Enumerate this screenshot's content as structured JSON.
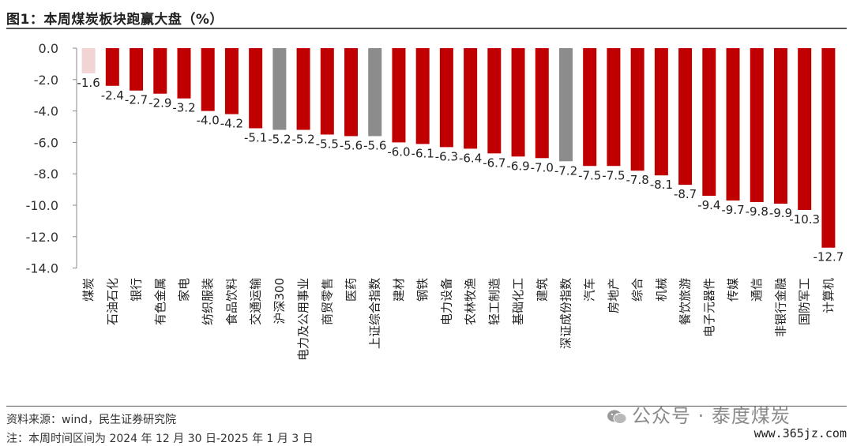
{
  "header": {
    "title": "图1：本周煤炭板块跑赢大盘（%）"
  },
  "footer": {
    "source": "资料来源：wind，民生证券研究院",
    "note": "注：本周时间区间为 2024 年 12 月 30 日-2025 年 1 月 3 日"
  },
  "watermark": {
    "text": "公众号 · 泰度煤炭",
    "icon": "wechat-icon",
    "site": "www.365jz.com"
  },
  "colors": {
    "highlight": "#f2d4d4",
    "sector": "#c00000",
    "index": "#8c8c8c"
  },
  "chart_data": {
    "type": "bar",
    "title": "本周煤炭板块跑赢大盘（%）",
    "xlabel": "",
    "ylabel": "",
    "ylim": [
      -14,
      0
    ],
    "yticks": [
      "0.0",
      "-2.0",
      "-4.0",
      "-6.0",
      "-8.0",
      "-10.0",
      "-12.0",
      "-14.0"
    ],
    "grid": false,
    "categories": [
      "煤炭",
      "石油石化",
      "银行",
      "有色金属",
      "家电",
      "纺织服装",
      "食品饮料",
      "交通运输",
      "沪深300",
      "电力及公用事业",
      "商贸零售",
      "医药",
      "上证综合指数",
      "建材",
      "钢铁",
      "电力设备",
      "农林牧渔",
      "轻工制造",
      "基础化工",
      "建筑",
      "深证成份指数",
      "汽车",
      "房地产",
      "综合",
      "机械",
      "餐饮旅游",
      "电子元器件",
      "传媒",
      "通信",
      "非银行金融",
      "国防军工",
      "计算机"
    ],
    "values": [
      -1.6,
      -2.4,
      -2.7,
      -2.9,
      -3.2,
      -4.0,
      -4.2,
      -5.1,
      -5.2,
      -5.2,
      -5.5,
      -5.6,
      -5.6,
      -6.0,
      -6.1,
      -6.3,
      -6.4,
      -6.7,
      -6.9,
      -7.0,
      -7.2,
      -7.5,
      -7.5,
      -7.8,
      -8.1,
      -8.7,
      -9.4,
      -9.7,
      -9.8,
      -9.9,
      -10.3,
      -12.7
    ],
    "labels": [
      "-1.6",
      "-2.4",
      "-2.7",
      "-2.9",
      "-3.2",
      "-4.0",
      "-4.2",
      "-5.1",
      "-5.2",
      "-5.2",
      "-5.5",
      "-5.6",
      "-5.6",
      "-6.0",
      "-6.1",
      "-6.3",
      "-6.4",
      "-6.7",
      "-6.9",
      "-7.0",
      "-7.2",
      "-7.5",
      "-7.5",
      "-7.8",
      "-8.1",
      "-8.7",
      "-9.4",
      "-9.7",
      "-9.8",
      "-9.9",
      "-10.3",
      "-12.7"
    ],
    "kind": [
      "highlight",
      "sector",
      "sector",
      "sector",
      "sector",
      "sector",
      "sector",
      "sector",
      "index",
      "sector",
      "sector",
      "sector",
      "index",
      "sector",
      "sector",
      "sector",
      "sector",
      "sector",
      "sector",
      "sector",
      "index",
      "sector",
      "sector",
      "sector",
      "sector",
      "sector",
      "sector",
      "sector",
      "sector",
      "sector",
      "sector",
      "sector"
    ]
  }
}
